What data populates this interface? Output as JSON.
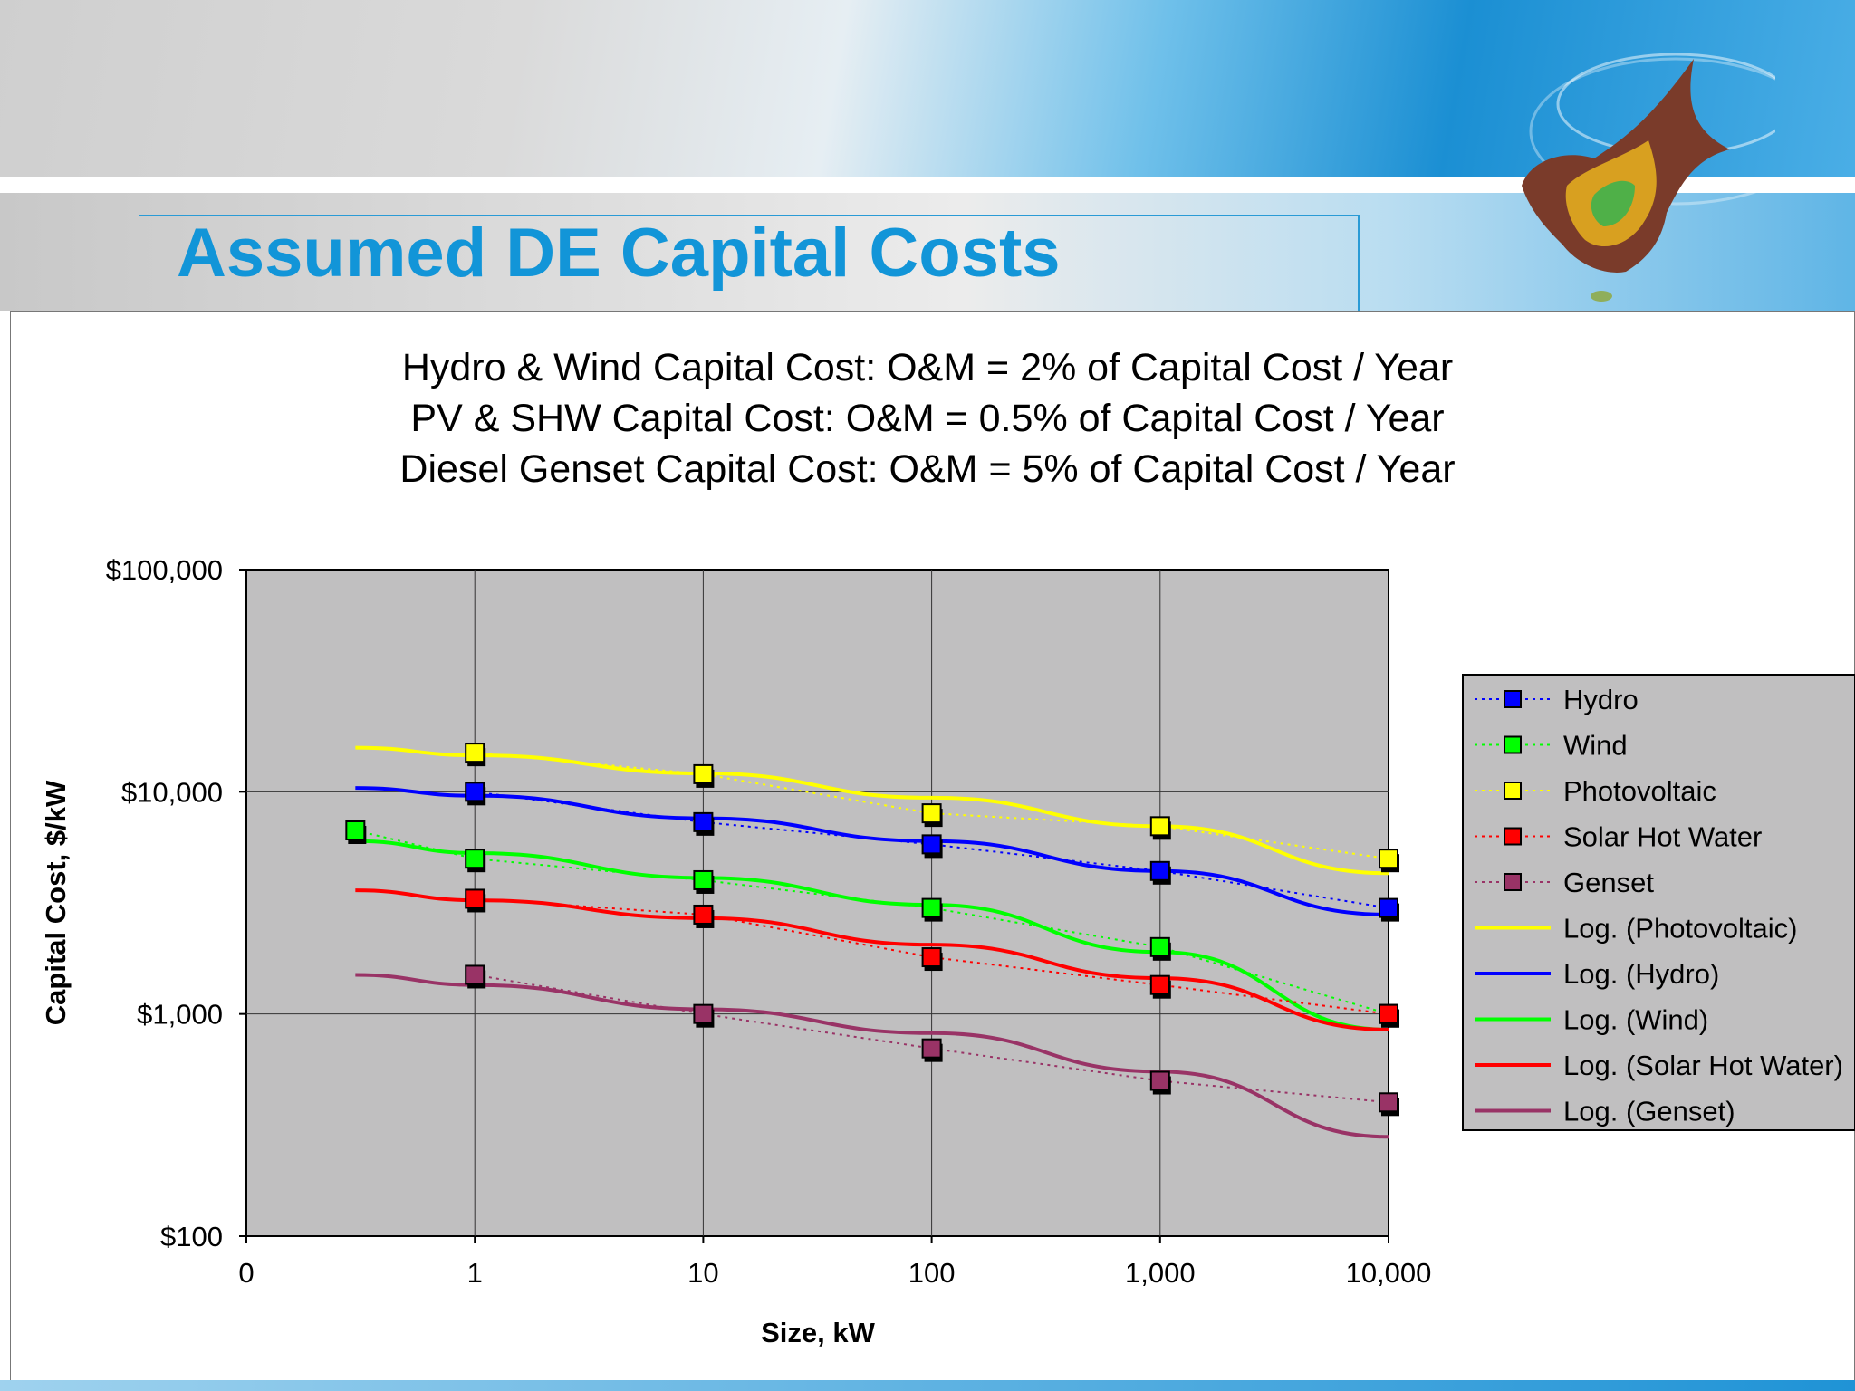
{
  "slide": {
    "title": "Assumed DE Capital Costs",
    "notes": [
      "Hydro & Wind Capital Cost: O&M = 2% of Capital Cost / Year",
      "PV & SHW Capital Cost: O&M = 0.5% of Capital Cost / Year",
      "Diesel Genset Capital Cost: O&M = 5% of Capital Cost / Year"
    ],
    "colors": {
      "title": "#1295d8",
      "plot_background": "#c0bfc0"
    }
  },
  "chart_data": {
    "type": "scatter",
    "xlabel": "Size, kW",
    "ylabel": "Capital Cost, $/kW",
    "x_scale": "log",
    "y_scale": "log",
    "xlim": [
      0.1,
      10000
    ],
    "ylim": [
      100,
      100000
    ],
    "x_ticks": [
      "0",
      "1",
      "10",
      "100",
      "1,000",
      "10,000"
    ],
    "y_ticks": [
      "$100",
      "$1,000",
      "$10,000",
      "$100,000"
    ],
    "grid": "vertical and horizontal major",
    "legend_position": "right",
    "series": [
      {
        "name": "Hydro",
        "color": "#0000ff",
        "marker": "square",
        "x": [
          1,
          10,
          100,
          1000,
          10000
        ],
        "y": [
          10000,
          7300,
          5800,
          4400,
          3000
        ]
      },
      {
        "name": "Wind",
        "color": "#00ff00",
        "marker": "square",
        "x": [
          0.3,
          1,
          10,
          100,
          1000,
          10000
        ],
        "y": [
          6700,
          5000,
          4000,
          3000,
          2000,
          1000
        ]
      },
      {
        "name": "Photovoltaic",
        "color": "#ffff00",
        "marker": "square",
        "x": [
          1,
          10,
          100,
          1000,
          10000
        ],
        "y": [
          15000,
          12000,
          8000,
          7000,
          5000
        ]
      },
      {
        "name": "Solar Hot Water",
        "color": "#ff0000",
        "marker": "square",
        "x": [
          1,
          10,
          100,
          1000,
          10000
        ],
        "y": [
          3300,
          2800,
          1800,
          1350,
          1000
        ]
      },
      {
        "name": "Genset",
        "color": "#993366",
        "marker": "square",
        "x": [
          1,
          10,
          100,
          1000,
          10000
        ],
        "y": [
          1500,
          1000,
          700,
          500,
          400
        ]
      }
    ],
    "trendlines": [
      {
        "name": "Log. (Photovoltaic)",
        "color": "#ffff00",
        "x": [
          0.3,
          1,
          10,
          100,
          1000,
          10000
        ],
        "y": [
          15800,
          14600,
          12100,
          9400,
          7000,
          4300
        ]
      },
      {
        "name": "Log. (Hydro)",
        "color": "#0000ff",
        "x": [
          0.3,
          1,
          10,
          100,
          1000,
          10000
        ],
        "y": [
          10400,
          9600,
          7600,
          6000,
          4400,
          2800
        ]
      },
      {
        "name": "Log. (Wind)",
        "color": "#00ff00",
        "x": [
          0.3,
          1,
          10,
          100,
          1000,
          10000
        ],
        "y": [
          6000,
          5300,
          4100,
          3100,
          1900,
          850
        ]
      },
      {
        "name": "Log. (Solar Hot Water)",
        "color": "#ff0000",
        "x": [
          0.3,
          1,
          10,
          100,
          1000,
          10000
        ],
        "y": [
          3600,
          3250,
          2700,
          2050,
          1450,
          850
        ]
      },
      {
        "name": "Log. (Genset)",
        "color": "#993366",
        "x": [
          0.3,
          1,
          10,
          100,
          1000,
          10000
        ],
        "y": [
          1500,
          1350,
          1050,
          820,
          550,
          280
        ]
      }
    ]
  }
}
